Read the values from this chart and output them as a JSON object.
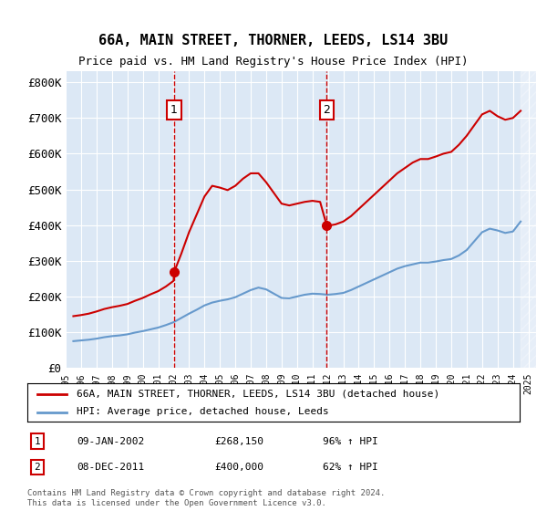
{
  "title": "66A, MAIN STREET, THORNER, LEEDS, LS14 3BU",
  "subtitle": "Price paid vs. HM Land Registry's House Price Index (HPI)",
  "legend_line1": "66A, MAIN STREET, THORNER, LEEDS, LS14 3BU (detached house)",
  "legend_line2": "HPI: Average price, detached house, Leeds",
  "annotation1_label": "1",
  "annotation1_date": "09-JAN-2002",
  "annotation1_price": "£268,150",
  "annotation1_hpi": "96% ↑ HPI",
  "annotation1_year": 2002.03,
  "annotation1_value": 268150,
  "annotation2_label": "2",
  "annotation2_date": "08-DEC-2011",
  "annotation2_price": "£400,000",
  "annotation2_hpi": "62% ↑ HPI",
  "annotation2_year": 2011.92,
  "annotation2_value": 400000,
  "ylabel": "",
  "xlabel": "",
  "ylim": [
    0,
    830000
  ],
  "yticks": [
    0,
    100000,
    200000,
    300000,
    400000,
    500000,
    600000,
    700000,
    800000
  ],
  "ytick_labels": [
    "£0",
    "£100K",
    "£200K",
    "£300K",
    "£400K",
    "£500K",
    "£600K",
    "£700K",
    "£800K"
  ],
  "xlim": [
    1995,
    2025.5
  ],
  "plot_bg_color": "#dce8f5",
  "red_color": "#cc0000",
  "blue_color": "#6699cc",
  "hatch_color": "#c0c0c0",
  "footnote": "Contains HM Land Registry data © Crown copyright and database right 2024.\nThis data is licensed under the Open Government Licence v3.0.",
  "hpi_data": {
    "years": [
      1995.5,
      1996.0,
      1996.5,
      1997.0,
      1997.5,
      1998.0,
      1998.5,
      1999.0,
      1999.5,
      2000.0,
      2000.5,
      2001.0,
      2001.5,
      2002.0,
      2002.5,
      2003.0,
      2003.5,
      2004.0,
      2004.5,
      2005.0,
      2005.5,
      2006.0,
      2006.5,
      2007.0,
      2007.5,
      2008.0,
      2008.5,
      2009.0,
      2009.5,
      2010.0,
      2010.5,
      2011.0,
      2011.5,
      2012.0,
      2012.5,
      2013.0,
      2013.5,
      2014.0,
      2014.5,
      2015.0,
      2015.5,
      2016.0,
      2016.5,
      2017.0,
      2017.5,
      2018.0,
      2018.5,
      2019.0,
      2019.5,
      2020.0,
      2020.5,
      2021.0,
      2021.5,
      2022.0,
      2022.5,
      2023.0,
      2023.5,
      2024.0,
      2024.5
    ],
    "values": [
      75000,
      77000,
      79000,
      82000,
      86000,
      89000,
      91000,
      94000,
      99000,
      103000,
      108000,
      113000,
      120000,
      128000,
      140000,
      152000,
      163000,
      175000,
      183000,
      188000,
      192000,
      198000,
      208000,
      218000,
      225000,
      220000,
      208000,
      196000,
      195000,
      200000,
      205000,
      208000,
      207000,
      205000,
      207000,
      210000,
      218000,
      228000,
      238000,
      248000,
      258000,
      268000,
      278000,
      285000,
      290000,
      295000,
      295000,
      298000,
      302000,
      305000,
      315000,
      330000,
      355000,
      380000,
      390000,
      385000,
      378000,
      382000,
      410000
    ]
  },
  "red_line_data": {
    "years": [
      1995.5,
      1996.0,
      1996.5,
      1997.0,
      1997.5,
      1998.0,
      1998.5,
      1999.0,
      1999.5,
      2000.0,
      2000.5,
      2001.0,
      2001.5,
      2002.0,
      2002.03,
      2002.5,
      2003.0,
      2003.5,
      2004.0,
      2004.5,
      2005.0,
      2005.5,
      2006.0,
      2006.5,
      2007.0,
      2007.5,
      2008.0,
      2008.5,
      2009.0,
      2009.5,
      2010.0,
      2010.5,
      2011.0,
      2011.5,
      2011.92,
      2012.0,
      2012.5,
      2013.0,
      2013.5,
      2014.0,
      2014.5,
      2015.0,
      2015.5,
      2016.0,
      2016.5,
      2017.0,
      2017.5,
      2018.0,
      2018.5,
      2019.0,
      2019.5,
      2020.0,
      2020.5,
      2021.0,
      2021.5,
      2022.0,
      2022.5,
      2023.0,
      2023.5,
      2024.0,
      2024.5
    ],
    "values": [
      145000,
      148000,
      152000,
      158000,
      165000,
      170000,
      174000,
      179000,
      188000,
      196000,
      206000,
      215000,
      228000,
      244000,
      268150,
      320000,
      380000,
      430000,
      480000,
      510000,
      505000,
      498000,
      510000,
      530000,
      545000,
      545000,
      520000,
      490000,
      460000,
      455000,
      460000,
      465000,
      468000,
      465000,
      400000,
      398000,
      402000,
      410000,
      425000,
      445000,
      465000,
      485000,
      505000,
      525000,
      545000,
      560000,
      575000,
      585000,
      585000,
      592000,
      600000,
      605000,
      625000,
      650000,
      680000,
      710000,
      720000,
      705000,
      695000,
      700000,
      720000
    ]
  }
}
